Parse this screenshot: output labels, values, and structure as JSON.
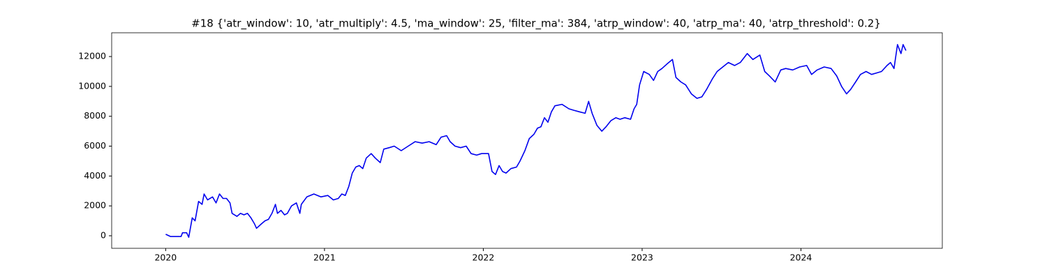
{
  "chart_data": {
    "type": "line",
    "title": "#18 {'atr_window': 10, 'atr_multiply': 4.5, 'ma_window': 25, 'filter_ma': 384, 'atrp_window': 40, 'atrp_ma': 40, 'atrp_threshold': 0.2}",
    "x": [
      2020.0,
      2020.031,
      2020.097,
      2020.106,
      2020.132,
      2020.145,
      2020.167,
      2020.185,
      2020.207,
      2020.229,
      2020.242,
      2020.264,
      2020.295,
      2020.317,
      2020.339,
      2020.361,
      2020.383,
      2020.405,
      2020.418,
      2020.449,
      2020.471,
      2020.493,
      2020.515,
      2020.537,
      2020.559,
      2020.572,
      2020.603,
      2020.625,
      2020.647,
      2020.669,
      2020.691,
      2020.704,
      2020.726,
      2020.748,
      2020.766,
      2020.792,
      2020.823,
      2020.845,
      2020.854,
      2020.889,
      2020.933,
      2020.977,
      2021.021,
      2021.056,
      2021.087,
      2021.109,
      2021.131,
      2021.153,
      2021.175,
      2021.197,
      2021.219,
      2021.241,
      2021.263,
      2021.294,
      2021.32,
      2021.351,
      2021.373,
      2021.408,
      2021.439,
      2021.483,
      2021.527,
      2021.571,
      2021.615,
      2021.659,
      2021.703,
      2021.734,
      2021.769,
      2021.791,
      2021.822,
      2021.857,
      2021.892,
      2021.923,
      2021.958,
      2021.989,
      2022.033,
      2022.055,
      2022.077,
      2022.099,
      2022.121,
      2022.143,
      2022.174,
      2022.209,
      2022.231,
      2022.262,
      2022.289,
      2022.319,
      2022.341,
      2022.363,
      2022.385,
      2022.407,
      2022.429,
      2022.451,
      2022.495,
      2022.539,
      2022.57,
      2022.605,
      2022.641,
      2022.663,
      2022.685,
      2022.715,
      2022.746,
      2022.773,
      2022.803,
      2022.834,
      2022.861,
      2022.891,
      2022.927,
      2022.949,
      2022.966,
      2022.984,
      2023.01,
      2023.045,
      2023.072,
      2023.098,
      2023.125,
      2023.156,
      2023.191,
      2023.213,
      2023.244,
      2023.274,
      2023.31,
      2023.345,
      2023.376,
      2023.406,
      2023.442,
      2023.472,
      2023.508,
      2023.543,
      2023.582,
      2023.618,
      2023.662,
      2023.697,
      2023.741,
      2023.772,
      2023.802,
      2023.838,
      2023.873,
      2023.904,
      2023.948,
      2023.992,
      2024.036,
      2024.067,
      2024.102,
      2024.146,
      2024.19,
      2024.225,
      2024.256,
      2024.287,
      2024.313,
      2024.344,
      2024.375,
      2024.41,
      2024.445,
      2024.476,
      2024.507,
      2024.542,
      2024.564,
      2024.586,
      2024.608,
      2024.63,
      2024.643,
      2024.661
    ],
    "series": [
      {
        "color": "#0000ee",
        "values": [
          100,
          -50,
          -50,
          200,
          200,
          -100,
          1200,
          1000,
          2300,
          2100,
          2800,
          2400,
          2600,
          2200,
          2800,
          2500,
          2500,
          2200,
          1500,
          1300,
          1500,
          1400,
          1500,
          1200,
          800,
          500,
          800,
          1000,
          1100,
          1500,
          2100,
          1500,
          1700,
          1400,
          1500,
          2000,
          2200,
          1500,
          2100,
          2600,
          2800,
          2600,
          2700,
          2400,
          2500,
          2800,
          2700,
          3300,
          4200,
          4600,
          4700,
          4500,
          5200,
          5500,
          5200,
          4900,
          5800,
          5900,
          6000,
          5700,
          6000,
          6300,
          6200,
          6300,
          6100,
          6600,
          6700,
          6300,
          6000,
          5900,
          6000,
          5500,
          5400,
          5500,
          5500,
          4300,
          4100,
          4700,
          4300,
          4200,
          4500,
          4600,
          5000,
          5700,
          6500,
          6800,
          7200,
          7300,
          7900,
          7600,
          8300,
          8700,
          8800,
          8500,
          8400,
          8300,
          8200,
          9000,
          8200,
          7400,
          7000,
          7300,
          7700,
          7900,
          7800,
          7900,
          7800,
          8500,
          8800,
          10100,
          11000,
          10800,
          10400,
          11000,
          11200,
          11500,
          11800,
          10600,
          10300,
          10100,
          9500,
          9200,
          9300,
          9800,
          10500,
          11000,
          11300,
          11600,
          11400,
          11600,
          12200,
          11800,
          12100,
          11000,
          10700,
          10300,
          11100,
          11200,
          11100,
          11300,
          11400,
          10800,
          11100,
          11300,
          11200,
          10700,
          10000,
          9500,
          9800,
          10300,
          10800,
          11000,
          10800,
          10900,
          11000,
          11400,
          11600,
          11200,
          12800,
          12200,
          12800,
          12400
        ]
      }
    ],
    "xlim": [
      2019.66,
      2024.89
    ],
    "xticks": [
      2020,
      2021,
      2022,
      2023,
      2024
    ],
    "ylim": [
      -840,
      13590
    ],
    "yticks": [
      0,
      2000,
      4000,
      6000,
      8000,
      10000,
      12000
    ]
  }
}
